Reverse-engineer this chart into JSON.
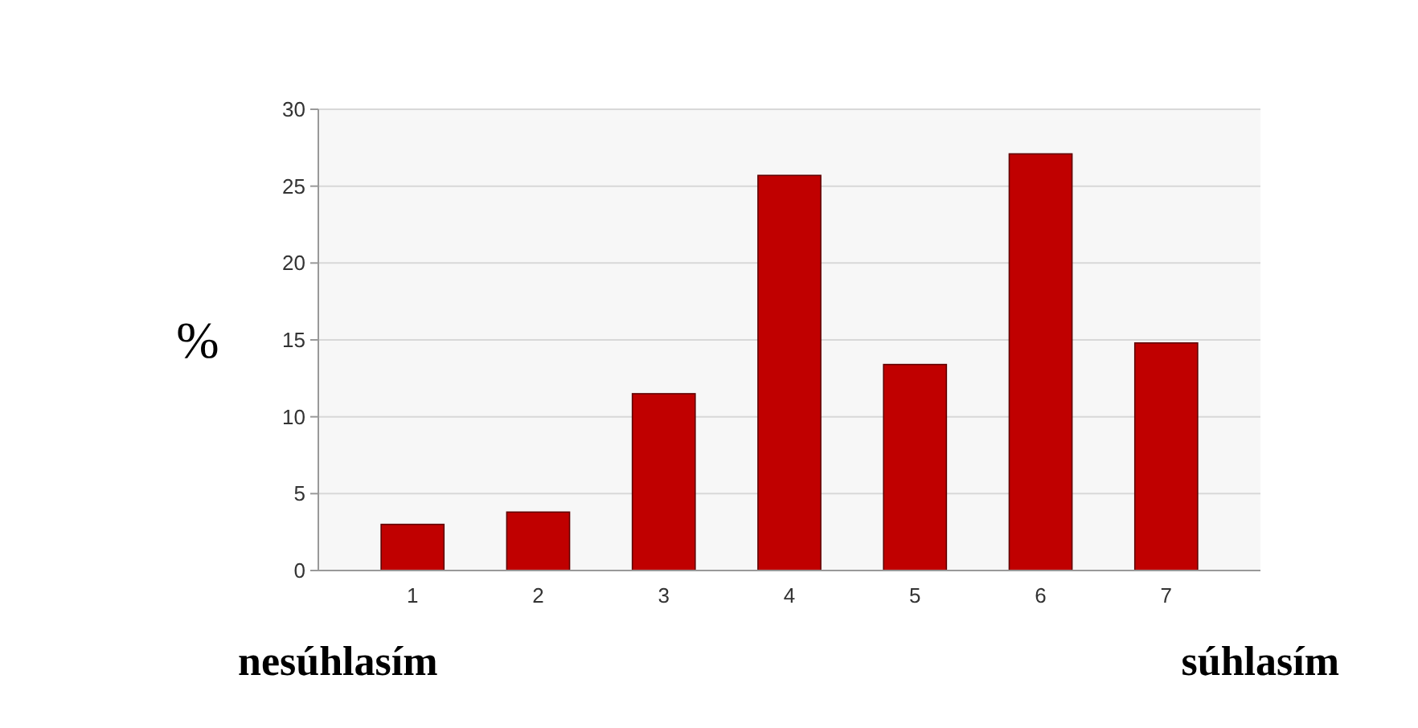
{
  "chart_data": {
    "type": "bar",
    "ylabel": "%",
    "categories": [
      "1",
      "2",
      "3",
      "4",
      "5",
      "6",
      "7"
    ],
    "values": [
      3.0,
      3.8,
      11.5,
      25.7,
      13.4,
      27.1,
      14.8
    ],
    "color": "#c00000",
    "ylim": [
      0,
      30
    ],
    "yticks": [
      0,
      5,
      10,
      15,
      20,
      25,
      30
    ],
    "grid": "y",
    "annotations": [
      "nesúhlasím",
      "súhlasím"
    ]
  }
}
